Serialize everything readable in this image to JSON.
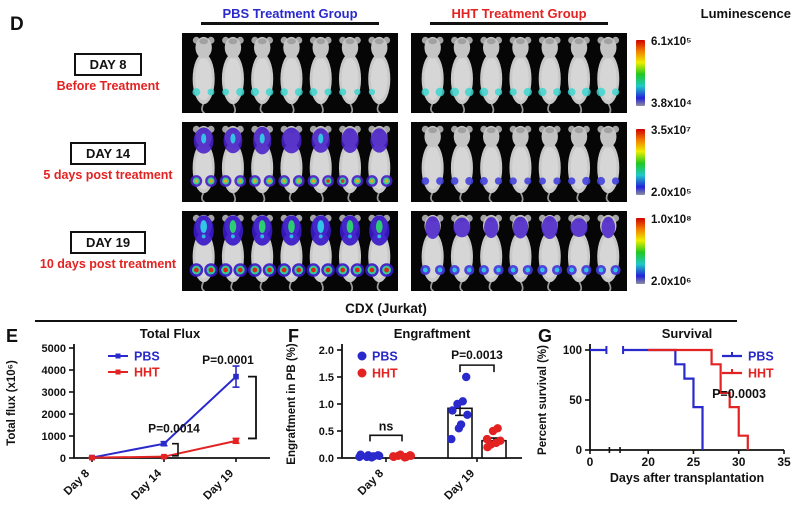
{
  "colors": {
    "blue": "#2929cc",
    "red": "#e32222",
    "axis": "#111111"
  },
  "panel_d": {
    "label": "D",
    "groups": [
      {
        "label": "PBS Treatment Group",
        "color": "#2929cc"
      },
      {
        "label": "HHT Treatment Group",
        "color": "#e32222"
      }
    ],
    "scale_title": "Luminescence",
    "mice_per_group": 7,
    "rows": [
      {
        "day": "DAY 8",
        "subtitle": "Before Treatment",
        "scale_high": "6.1x10⁵",
        "scale_low": "3.8x10⁴",
        "pbs_signal": "faint",
        "hht_signal": "faint"
      },
      {
        "day": "DAY 14",
        "subtitle": "5 days post treatment",
        "scale_high": "3.5x10⁷",
        "scale_low": "2.0x10⁵",
        "pbs_signal": "high",
        "hht_signal": "low"
      },
      {
        "day": "DAY 19",
        "subtitle": "10 days post treatment",
        "scale_high": "1.0x10⁸",
        "scale_low": "2.0x10⁶",
        "pbs_signal": "veryhigh",
        "hht_signal": "medium"
      }
    ]
  },
  "section_title": "CDX (Jurkat)",
  "chart_data": [
    {
      "panel": "E",
      "type": "line",
      "title": "Total Flux",
      "ylabel": "Total flux (x10⁶)",
      "categories": [
        "Day 8",
        "Day 14",
        "Day 19"
      ],
      "ylim": [
        0,
        5000
      ],
      "yticks": [
        0,
        1000,
        2000,
        3000,
        4000,
        5000
      ],
      "legend_position": "top-left",
      "series": [
        {
          "name": "PBS",
          "color": "#2929cc",
          "values": [
            20,
            650,
            3700
          ],
          "errors": [
            10,
            90,
            480
          ]
        },
        {
          "name": "HHT",
          "color": "#e32222",
          "values": [
            15,
            60,
            780
          ],
          "errors": [
            5,
            20,
            110
          ]
        }
      ],
      "annotations": [
        {
          "text": "P=0.0014",
          "at": "Day 14"
        },
        {
          "text": "P=0.0001",
          "at": "Day 19"
        }
      ]
    },
    {
      "panel": "F",
      "type": "scatter-bar",
      "title": "Engraftment",
      "ylabel": "Engraftment in PB (%)",
      "categories": [
        "Day 8",
        "Day 19"
      ],
      "ylim": [
        0,
        2.0
      ],
      "yticks": [
        "0.0",
        "0.5",
        "1.0",
        "1.5",
        "2.0"
      ],
      "legend_position": "top-left",
      "series": [
        {
          "name": "PBS",
          "color": "#2929cc",
          "points": {
            "Day 8": [
              0.02,
              0.05,
              0.01,
              0.04,
              0.06,
              0.02,
              0.03,
              0.05
            ],
            "Day 19": [
              0.35,
              0.55,
              0.62,
              0.8,
              0.88,
              1.0,
              1.05,
              1.5
            ]
          },
          "bar_mean": {
            "Day 19": 0.92
          },
          "bar_err": {
            "Day 19": 0.13
          }
        },
        {
          "name": "HHT",
          "color": "#e32222",
          "points": {
            "Day 8": [
              0.02,
              0.04,
              0.01,
              0.05,
              0.03,
              0.06,
              0.02,
              0.04
            ],
            "Day 19": [
              0.2,
              0.25,
              0.28,
              0.32,
              0.35,
              0.5,
              0.55
            ]
          },
          "bar_mean": {
            "Day 19": 0.32
          },
          "bar_err": {
            "Day 19": 0.05
          }
        }
      ],
      "annotations": [
        {
          "text": "ns",
          "at": "Day 8"
        },
        {
          "text": "P=0.0013",
          "at": "Day 19"
        }
      ]
    },
    {
      "panel": "G",
      "type": "step",
      "title": "Survival",
      "ylabel": "Percent survival (%)",
      "xlabel": "Days after transplantation",
      "xlim": [
        0,
        35
      ],
      "xticks": [
        0,
        20,
        25,
        30,
        35
      ],
      "yticks": [
        0,
        50,
        100
      ],
      "axis_break_between": [
        5,
        20
      ],
      "legend_position": "top-right",
      "series": [
        {
          "name": "PBS",
          "color": "#2929cc",
          "steps": [
            [
              0,
              100
            ],
            [
              23,
              100
            ],
            [
              23,
              85.7
            ],
            [
              24,
              85.7
            ],
            [
              24,
              71.4
            ],
            [
              25,
              71.4
            ],
            [
              25,
              42.9
            ],
            [
              26,
              42.9
            ],
            [
              26,
              0
            ]
          ]
        },
        {
          "name": "HHT",
          "color": "#e32222",
          "steps": [
            [
              20,
              100
            ],
            [
              27,
              100
            ],
            [
              27,
              85.7
            ],
            [
              28,
              85.7
            ],
            [
              28,
              57.1
            ],
            [
              29,
              57.1
            ],
            [
              29,
              42.9
            ],
            [
              30,
              42.9
            ],
            [
              30,
              14.3
            ],
            [
              31,
              14.3
            ],
            [
              31,
              0
            ]
          ]
        }
      ],
      "annotations": [
        {
          "text": "P=0.0003"
        }
      ]
    }
  ]
}
